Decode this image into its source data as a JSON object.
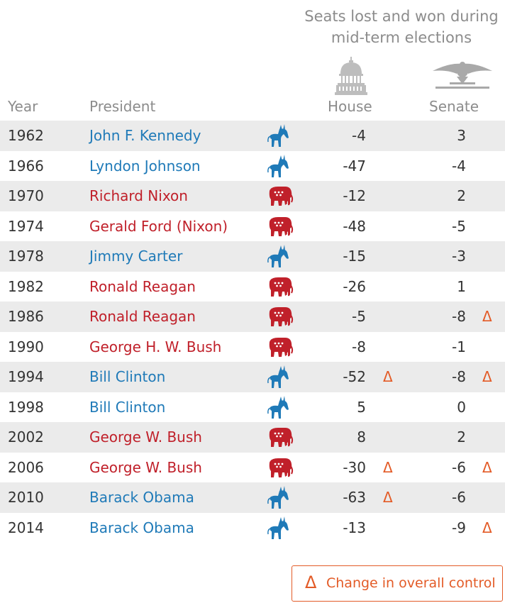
{
  "title_lines": [
    "Seats lost and won during",
    "mid-term elections"
  ],
  "headers": {
    "year": "Year",
    "president": "President",
    "house": "House",
    "senate": "Senate"
  },
  "colors": {
    "democrat": "#1f7ab8",
    "republican": "#c0202a",
    "change": "#e35b27",
    "shade": "#ebebeb"
  },
  "icons": {
    "house": "capitol-icon",
    "senate": "senate-eagle-icon",
    "democrat": "donkey-icon",
    "republican": "elephant-icon"
  },
  "legend": {
    "symbol": "Δ",
    "label": "Change in overall control"
  },
  "chart_data": {
    "type": "table",
    "title": "Seats lost and won during mid-term elections",
    "columns": [
      "Year",
      "President",
      "House",
      "Senate"
    ],
    "rows": [
      {
        "year": "1962",
        "president": "John F. Kennedy",
        "party": "democrat",
        "house": "-4",
        "senate": "3",
        "house_change": false,
        "senate_change": false
      },
      {
        "year": "1966",
        "president": "Lyndon Johnson",
        "party": "democrat",
        "house": "-47",
        "senate": "-4",
        "house_change": false,
        "senate_change": false
      },
      {
        "year": "1970",
        "president": "Richard Nixon",
        "party": "republican",
        "house": "-12",
        "senate": "2",
        "house_change": false,
        "senate_change": false
      },
      {
        "year": "1974",
        "president": "Gerald Ford (Nixon)",
        "party": "republican",
        "house": "-48",
        "senate": "-5",
        "house_change": false,
        "senate_change": false
      },
      {
        "year": "1978",
        "president": "Jimmy Carter",
        "party": "democrat",
        "house": "-15",
        "senate": "-3",
        "house_change": false,
        "senate_change": false
      },
      {
        "year": "1982",
        "president": "Ronald Reagan",
        "party": "republican",
        "house": "-26",
        "senate": "1",
        "house_change": false,
        "senate_change": false
      },
      {
        "year": "1986",
        "president": "Ronald Reagan",
        "party": "republican",
        "house": "-5",
        "senate": "-8",
        "house_change": false,
        "senate_change": true
      },
      {
        "year": "1990",
        "president": "George H. W. Bush",
        "party": "republican",
        "house": "-8",
        "senate": "-1",
        "house_change": false,
        "senate_change": false
      },
      {
        "year": "1994",
        "president": "Bill Clinton",
        "party": "democrat",
        "house": "-52",
        "senate": "-8",
        "house_change": true,
        "senate_change": true
      },
      {
        "year": "1998",
        "president": "Bill Clinton",
        "party": "democrat",
        "house": "5",
        "senate": "0",
        "house_change": false,
        "senate_change": false
      },
      {
        "year": "2002",
        "president": "George W. Bush",
        "party": "republican",
        "house": "8",
        "senate": "2",
        "house_change": false,
        "senate_change": false
      },
      {
        "year": "2006",
        "president": "George W. Bush",
        "party": "republican",
        "house": "-30",
        "senate": "-6",
        "house_change": true,
        "senate_change": true
      },
      {
        "year": "2010",
        "president": "Barack Obama",
        "party": "democrat",
        "house": "-63",
        "senate": "-6",
        "house_change": true,
        "senate_change": false
      },
      {
        "year": "2014",
        "president": "Barack Obama",
        "party": "democrat",
        "house": "-13",
        "senate": "-9",
        "house_change": false,
        "senate_change": true
      }
    ]
  }
}
